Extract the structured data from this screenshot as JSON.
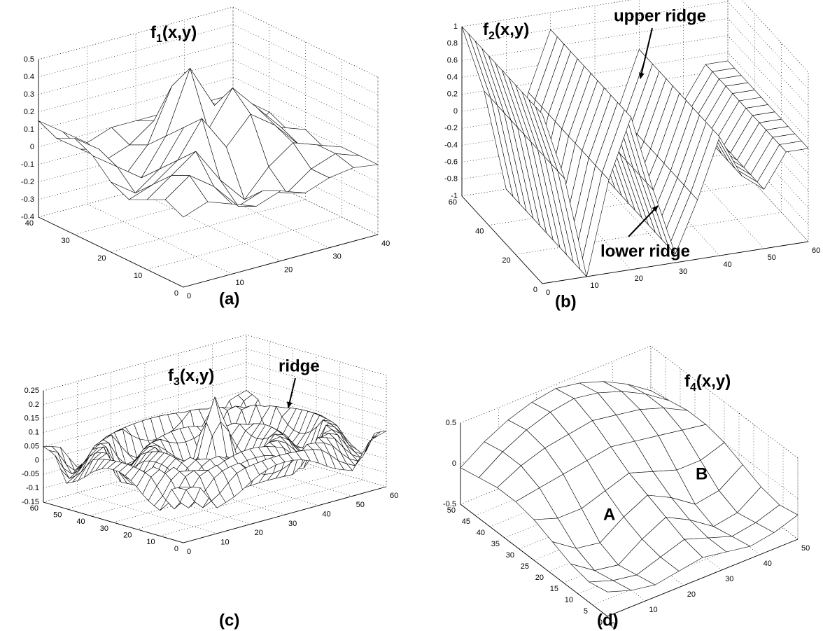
{
  "chart_data": [
    {
      "type": "surface",
      "title": {
        "base": "f",
        "sub": "1",
        "args": "(x,y)"
      },
      "panel_label": "(a)",
      "xlim": [
        0,
        40
      ],
      "ylim": [
        0,
        40
      ],
      "zlim": [
        -0.4,
        0.5
      ],
      "xticks": [
        0,
        10,
        20,
        30,
        40
      ],
      "yticks": [
        0,
        10,
        20,
        30,
        40
      ],
      "zticks": [
        -0.4,
        -0.3,
        -0.2,
        -0.1,
        0,
        0.1,
        0.2,
        0.3,
        0.4,
        0.5
      ],
      "x": [
        0,
        5,
        10,
        15,
        20,
        25,
        30,
        35,
        40
      ],
      "y": [
        0,
        5,
        10,
        15,
        20,
        25,
        30,
        35,
        40
      ],
      "z": [
        [
          0,
          0.05,
          0,
          -0.05,
          0,
          -0.05,
          0,
          0.02,
          0
        ],
        [
          0.05,
          0.15,
          0.05,
          -0.1,
          -0.05,
          -0.1,
          0,
          0.05,
          0
        ],
        [
          0,
          0.1,
          0.2,
          0,
          -0.15,
          0,
          0.1,
          0.05,
          0
        ],
        [
          -0.05,
          0,
          0.1,
          0.3,
          0.1,
          0.25,
          0.15,
          0,
          -0.05
        ],
        [
          0,
          -0.1,
          0,
          0.2,
          0.15,
          0.35,
          0.2,
          0.05,
          0
        ],
        [
          0.1,
          0,
          -0.1,
          0.1,
          0.45,
          0.2,
          0.1,
          0,
          -0.05
        ],
        [
          0.15,
          0.05,
          -0.15,
          0,
          0.3,
          0.1,
          0,
          -0.1,
          0
        ],
        [
          0.1,
          0,
          -0.1,
          -0.05,
          0.05,
          0,
          -0.05,
          0,
          0
        ],
        [
          0.15,
          0.05,
          -0.05,
          0,
          0,
          0,
          0,
          0,
          0
        ]
      ]
    },
    {
      "type": "surface",
      "title": {
        "base": "f",
        "sub": "2",
        "args": "(x,y)"
      },
      "panel_label": "(b)",
      "annotations": [
        "upper ridge",
        "lower ridge"
      ],
      "xlim": [
        0,
        60
      ],
      "ylim": [
        0,
        60
      ],
      "zlim": [
        -1,
        1
      ],
      "xticks": [
        0,
        10,
        20,
        30,
        40,
        50,
        60
      ],
      "yticks": [
        0,
        20,
        40,
        60
      ],
      "zticks": [
        -1,
        -0.8,
        -0.6,
        -0.4,
        -0.2,
        0,
        0.2,
        0.4,
        0.6,
        0.8,
        1
      ],
      "x": [
        0,
        5,
        10,
        15,
        20,
        25,
        30,
        35,
        40,
        45,
        50,
        55,
        60
      ],
      "values": [
        1,
        0.2,
        -1,
        0.1,
        0.8,
        -0.1,
        -0.9,
        -0.3,
        0.4,
        -0.1,
        -0.3,
        0.1,
        0.1
      ]
    },
    {
      "type": "surface",
      "title": {
        "base": "f",
        "sub": "3",
        "args": "(x,y)"
      },
      "panel_label": "(c)",
      "annotations": [
        "ridge"
      ],
      "xlim": [
        0,
        60
      ],
      "ylim": [
        0,
        60
      ],
      "zlim": [
        -0.15,
        0.25
      ],
      "xticks": [
        0,
        10,
        20,
        30,
        40,
        50,
        60
      ],
      "yticks": [
        0,
        10,
        20,
        30,
        40,
        50,
        60
      ],
      "zticks": [
        -0.15,
        -0.1,
        -0.05,
        0,
        0.05,
        0.1,
        0.15,
        0.2,
        0.25
      ],
      "r": [
        0,
        3,
        6,
        9,
        12,
        15,
        18,
        21,
        24,
        27,
        30,
        33,
        36,
        39,
        42
      ],
      "values": [
        0.2,
        0.1,
        -0.05,
        -0.08,
        0,
        0.05,
        0.02,
        -0.04,
        -0.05,
        0.06,
        0.04,
        -0.03,
        -0.06,
        0.03,
        0.05
      ]
    },
    {
      "type": "surface",
      "title": {
        "base": "f",
        "sub": "4",
        "args": "(x,y)"
      },
      "panel_label": "(d)",
      "annotations": [
        "A",
        "B"
      ],
      "xlim": [
        0,
        50
      ],
      "ylim": [
        0,
        50
      ],
      "zlim": [
        -0.5,
        0.5
      ],
      "xticks": [
        0,
        10,
        20,
        30,
        40,
        50
      ],
      "yticks": [
        0,
        5,
        10,
        15,
        20,
        25,
        30,
        35,
        40,
        45,
        50
      ],
      "zticks": [
        -0.5,
        0,
        0.5
      ],
      "x": [
        0,
        6.25,
        12.5,
        18.75,
        25,
        31.25,
        37.5,
        43.75,
        50
      ],
      "y": [
        0,
        6.25,
        12.5,
        18.75,
        25,
        31.25,
        37.5,
        43.75,
        50
      ],
      "z": [
        [
          -0.2,
          -0.3,
          -0.35,
          -0.3,
          -0.25,
          -0.3,
          -0.35,
          -0.3,
          -0.2
        ],
        [
          -0.25,
          -0.35,
          -0.4,
          -0.3,
          -0.2,
          -0.3,
          -0.4,
          -0.35,
          -0.25
        ],
        [
          -0.2,
          -0.4,
          -0.45,
          -0.25,
          -0.1,
          -0.25,
          -0.45,
          -0.4,
          -0.2
        ],
        [
          -0.1,
          -0.3,
          -0.35,
          -0.15,
          0,
          -0.15,
          -0.35,
          -0.3,
          -0.1
        ],
        [
          0,
          -0.1,
          -0.1,
          0,
          0.1,
          0,
          -0.1,
          -0.1,
          0
        ],
        [
          0.05,
          0.1,
          0.15,
          0.2,
          0.25,
          0.2,
          0.15,
          0.1,
          0.05
        ],
        [
          0.05,
          0.2,
          0.3,
          0.35,
          0.4,
          0.35,
          0.3,
          0.2,
          0.05
        ],
        [
          0,
          0.2,
          0.35,
          0.45,
          0.5,
          0.45,
          0.35,
          0.2,
          0
        ],
        [
          -0.05,
          0.15,
          0.3,
          0.4,
          0.45,
          0.4,
          0.3,
          0.15,
          -0.05
        ]
      ]
    }
  ]
}
